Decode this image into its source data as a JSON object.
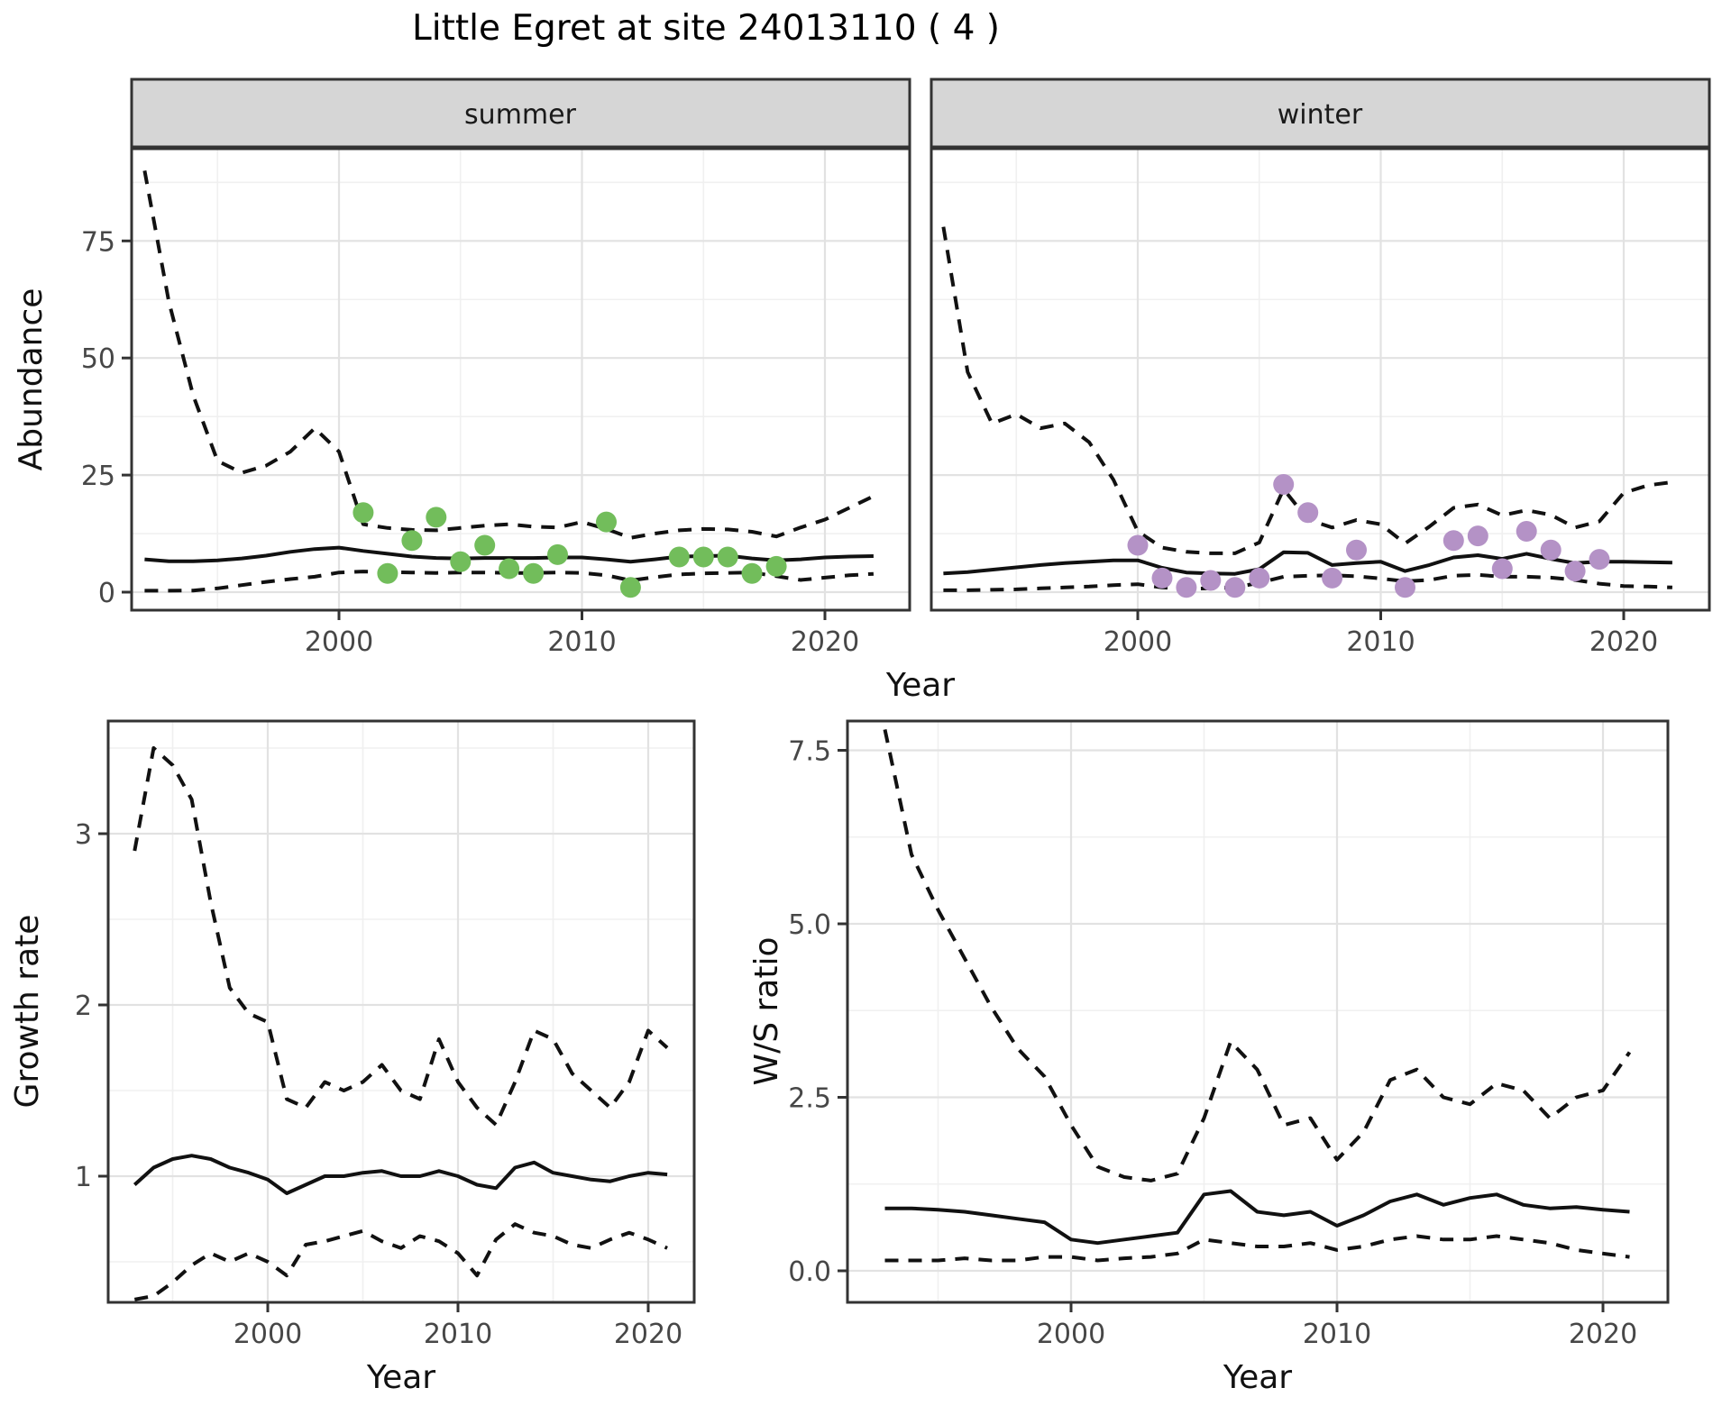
{
  "figure": {
    "title": "Little Egret at site 24013110 ( 4 )",
    "top_x_axis_title": "Year"
  },
  "colors": {
    "line": "#111111",
    "summer_points": "#72bd5b",
    "winter_points": "#b492c6",
    "strip_background": "#d6d6d6",
    "panel_border": "#333333",
    "grid_major": "#e2e2e2",
    "grid_minor": "#f0f0f0",
    "tick_text": "#474747"
  },
  "chart_data": [
    {
      "type": "line",
      "facet_label": "summer",
      "xlabel": "Year",
      "ylabel": "Abundance",
      "xlim": [
        1991.5,
        2023.5
      ],
      "ylim": [
        -4,
        98.5
      ],
      "grid": true,
      "legend": "none",
      "x_ticks": {
        "values": [
          2000,
          2010,
          2020
        ],
        "labels": [
          "2000",
          "2010",
          "2020"
        ]
      },
      "y_ticks": {
        "values": [
          0,
          25,
          50,
          75
        ],
        "labels": [
          "0",
          "25",
          "50",
          "75"
        ]
      },
      "series": [
        {
          "name": "upper_95ci",
          "style": "dashed",
          "x": [
            1992,
            1993,
            1994,
            1995,
            1996,
            1997,
            1998,
            1999,
            2000,
            2001,
            2002,
            2003,
            2004,
            2005,
            2006,
            2007,
            2008,
            2009,
            2010,
            2011,
            2012,
            2013,
            2014,
            2015,
            2016,
            2017,
            2018,
            2019,
            2020,
            2021,
            2022
          ],
          "y": [
            90,
            62,
            42,
            28,
            25.5,
            27,
            30,
            35,
            30,
            14.5,
            13.7,
            13.3,
            13.2,
            13.7,
            14.2,
            14.5,
            14,
            13.8,
            15,
            13.5,
            11.6,
            12.5,
            13.2,
            13.5,
            13.4,
            12.9,
            11.9,
            13.8,
            15.5,
            18,
            20.5
          ]
        },
        {
          "name": "median",
          "style": "solid",
          "x": [
            1992,
            1993,
            1994,
            1995,
            1996,
            1997,
            1998,
            1999,
            2000,
            2001,
            2002,
            2003,
            2004,
            2005,
            2006,
            2007,
            2008,
            2009,
            2010,
            2011,
            2012,
            2013,
            2014,
            2015,
            2016,
            2017,
            2018,
            2019,
            2020,
            2021,
            2022
          ],
          "y": [
            7,
            6.6,
            6.6,
            6.8,
            7.2,
            7.8,
            8.6,
            9.2,
            9.5,
            8.8,
            8.2,
            7.6,
            7.3,
            7.2,
            7.3,
            7.3,
            7.3,
            7.4,
            7.4,
            7,
            6.5,
            7,
            7.6,
            7.7,
            7.8,
            7.2,
            6.8,
            7,
            7.4,
            7.6,
            7.7
          ]
        },
        {
          "name": "lower_95ci",
          "style": "dashed",
          "x": [
            1992,
            1993,
            1994,
            1995,
            1996,
            1997,
            1998,
            1999,
            2000,
            2001,
            2002,
            2003,
            2004,
            2005,
            2006,
            2007,
            2008,
            2009,
            2010,
            2011,
            2012,
            2013,
            2014,
            2015,
            2016,
            2017,
            2018,
            2019,
            2020,
            2021,
            2022
          ],
          "y": [
            0.3,
            0.3,
            0.35,
            0.8,
            1.5,
            2.2,
            2.8,
            3.3,
            4.2,
            4.4,
            4.3,
            4.2,
            4.1,
            4.2,
            4.2,
            4.1,
            4.1,
            4.2,
            4.1,
            3.6,
            2.5,
            3.2,
            3.8,
            4,
            4.1,
            4.2,
            3.4,
            2.6,
            3.1,
            3.6,
            3.9
          ]
        }
      ],
      "points": {
        "name": "observed_counts",
        "color": "#72bd5b",
        "x": [
          2001,
          2002,
          2003,
          2004,
          2005,
          2006,
          2007,
          2008,
          2009,
          2011,
          2012,
          2014,
          2015,
          2016,
          2017,
          2018
        ],
        "y": [
          17,
          4,
          11,
          16,
          6.5,
          10,
          5,
          4,
          8,
          15,
          1,
          7.5,
          7.5,
          7.5,
          4,
          5.5
        ]
      }
    },
    {
      "type": "line",
      "facet_label": "winter",
      "xlabel": "Year",
      "ylabel": "Abundance",
      "xlim": [
        1991.5,
        2023.5
      ],
      "ylim": [
        -4,
        98.5
      ],
      "grid": true,
      "legend": "none",
      "x_ticks": {
        "values": [
          2000,
          2010,
          2020
        ],
        "labels": [
          "2000",
          "2010",
          "2020"
        ]
      },
      "y_ticks": {
        "values": [
          0,
          25,
          50,
          75
        ],
        "labels": [
          "0",
          "25",
          "50",
          "75"
        ]
      },
      "series": [
        {
          "name": "upper_95ci",
          "style": "dashed",
          "x": [
            1992,
            1993,
            1994,
            1995,
            1996,
            1997,
            1998,
            1999,
            2000,
            2001,
            2002,
            2003,
            2004,
            2005,
            2006,
            2007,
            2008,
            2009,
            2010,
            2011,
            2012,
            2013,
            2014,
            2015,
            2016,
            2017,
            2018,
            2019,
            2020,
            2021,
            2022
          ],
          "y": [
            78,
            47,
            36,
            38,
            35,
            36,
            32,
            24,
            13,
            9.5,
            8.6,
            8.3,
            8.3,
            10.6,
            22,
            15.5,
            13.8,
            15.4,
            14.5,
            10.4,
            14,
            18,
            18.7,
            16.4,
            17.5,
            16.5,
            13.8,
            15.1,
            21.2,
            22.8,
            23.5
          ]
        },
        {
          "name": "median",
          "style": "solid",
          "x": [
            1992,
            1993,
            1994,
            1995,
            1996,
            1997,
            1998,
            1999,
            2000,
            2001,
            2002,
            2003,
            2004,
            2005,
            2006,
            2007,
            2008,
            2009,
            2010,
            2011,
            2012,
            2013,
            2014,
            2015,
            2016,
            2017,
            2018,
            2019,
            2020,
            2021,
            2022
          ],
          "y": [
            4,
            4.3,
            4.8,
            5.3,
            5.8,
            6.2,
            6.5,
            6.8,
            6.8,
            5.2,
            4.2,
            4,
            3.9,
            4.9,
            8.5,
            8.4,
            5.8,
            6.2,
            6.5,
            4.5,
            5.8,
            7.4,
            7.9,
            7.1,
            8.2,
            7.1,
            6.2,
            6.5,
            6.5,
            6.4,
            6.3
          ]
        },
        {
          "name": "lower_95ci",
          "style": "dashed",
          "x": [
            1992,
            1993,
            1994,
            1995,
            1996,
            1997,
            1998,
            1999,
            2000,
            2001,
            2002,
            2003,
            2004,
            2005,
            2006,
            2007,
            2008,
            2009,
            2010,
            2011,
            2012,
            2013,
            2014,
            2015,
            2016,
            2017,
            2018,
            2019,
            2020,
            2021,
            2022
          ],
          "y": [
            0.4,
            0.4,
            0.5,
            0.6,
            0.8,
            1,
            1.2,
            1.5,
            1.7,
            1,
            0.7,
            0.8,
            1,
            2,
            3.3,
            3.5,
            3.6,
            3.4,
            2.9,
            2.3,
            2.6,
            3.5,
            3.7,
            3.3,
            3.3,
            3.1,
            2.6,
            1.8,
            1.3,
            1.2,
            1
          ]
        }
      ],
      "points": {
        "name": "observed_counts",
        "color": "#b492c6",
        "x": [
          2000,
          2001,
          2002,
          2003,
          2004,
          2005,
          2006,
          2007,
          2008,
          2009,
          2011,
          2013,
          2014,
          2015,
          2016,
          2017,
          2018,
          2019
        ],
        "y": [
          10,
          3,
          1,
          2.5,
          1,
          3,
          23,
          17,
          3,
          9,
          1,
          11,
          12,
          5,
          13,
          9,
          4.5,
          7
        ]
      }
    },
    {
      "type": "line",
      "facet_label": "",
      "xlabel": "Year",
      "ylabel": "Growth rate",
      "xlim": [
        1991.6,
        2022.4
      ],
      "ylim": [
        0.26,
        3.66
      ],
      "grid": true,
      "legend": "none",
      "x_ticks": {
        "values": [
          2000,
          2010,
          2020
        ],
        "labels": [
          "2000",
          "2010",
          "2020"
        ]
      },
      "y_ticks": {
        "values": [
          1,
          2,
          3
        ],
        "labels": [
          "1",
          "2",
          "3"
        ]
      },
      "series": [
        {
          "name": "upper_95ci",
          "style": "dashed",
          "x": [
            1993,
            1994,
            1995,
            1996,
            1997,
            1998,
            1999,
            2000,
            2001,
            2002,
            2003,
            2004,
            2005,
            2006,
            2007,
            2008,
            2009,
            2010,
            2011,
            2012,
            2013,
            2014,
            2015,
            2016,
            2017,
            2018,
            2019,
            2020,
            2021
          ],
          "y": [
            2.9,
            3.5,
            3.4,
            3.2,
            2.6,
            2.1,
            1.95,
            1.9,
            1.45,
            1.4,
            1.55,
            1.5,
            1.55,
            1.65,
            1.5,
            1.45,
            1.8,
            1.55,
            1.4,
            1.3,
            1.55,
            1.85,
            1.8,
            1.6,
            1.5,
            1.4,
            1.55,
            1.85,
            1.75
          ]
        },
        {
          "name": "median",
          "style": "solid",
          "x": [
            1993,
            1994,
            1995,
            1996,
            1997,
            1998,
            1999,
            2000,
            2001,
            2002,
            2003,
            2004,
            2005,
            2006,
            2007,
            2008,
            2009,
            2010,
            2011,
            2012,
            2013,
            2014,
            2015,
            2016,
            2017,
            2018,
            2019,
            2020,
            2021
          ],
          "y": [
            0.95,
            1.05,
            1.1,
            1.12,
            1.1,
            1.05,
            1.02,
            0.98,
            0.9,
            0.95,
            1,
            1,
            1.02,
            1.03,
            1,
            1,
            1.03,
            1,
            0.95,
            0.93,
            1.05,
            1.08,
            1.02,
            1,
            0.98,
            0.97,
            1,
            1.02,
            1.01
          ]
        },
        {
          "name": "lower_95ci",
          "style": "dashed",
          "x": [
            1993,
            1994,
            1995,
            1996,
            1997,
            1998,
            1999,
            2000,
            2001,
            2002,
            2003,
            2004,
            2005,
            2006,
            2007,
            2008,
            2009,
            2010,
            2011,
            2012,
            2013,
            2014,
            2015,
            2016,
            2017,
            2018,
            2019,
            2020,
            2021
          ],
          "y": [
            0.28,
            0.3,
            0.38,
            0.48,
            0.55,
            0.5,
            0.55,
            0.5,
            0.42,
            0.6,
            0.62,
            0.65,
            0.68,
            0.62,
            0.58,
            0.65,
            0.62,
            0.55,
            0.42,
            0.63,
            0.72,
            0.67,
            0.65,
            0.6,
            0.58,
            0.63,
            0.67,
            0.63,
            0.58
          ]
        }
      ],
      "points": null
    },
    {
      "type": "line",
      "facet_label": "",
      "xlabel": "Year",
      "ylabel": "W/S ratio",
      "xlim": [
        1991.6,
        2022.4
      ],
      "ylim": [
        -0.45,
        7.9
      ],
      "grid": true,
      "legend": "none",
      "x_ticks": {
        "values": [
          2000,
          2010,
          2020
        ],
        "labels": [
          "2000",
          "2010",
          "2020"
        ]
      },
      "y_ticks": {
        "values": [
          0,
          2.5,
          5,
          7.5
        ],
        "labels": [
          "0.0",
          "2.5",
          "5.0",
          "7.5"
        ]
      },
      "series": [
        {
          "name": "upper_95ci",
          "style": "dashed",
          "x": [
            1993,
            1994,
            1995,
            1996,
            1997,
            1998,
            1999,
            2000,
            2001,
            2002,
            2003,
            2004,
            2005,
            2006,
            2007,
            2008,
            2009,
            2010,
            2011,
            2012,
            2013,
            2014,
            2015,
            2016,
            2017,
            2018,
            2019,
            2020,
            2021
          ],
          "y": [
            7.8,
            6,
            5.2,
            4.5,
            3.8,
            3.2,
            2.8,
            2.1,
            1.5,
            1.35,
            1.3,
            1.4,
            2.2,
            3.3,
            2.9,
            2.1,
            2.2,
            1.6,
            2,
            2.75,
            2.9,
            2.5,
            2.4,
            2.7,
            2.6,
            2.2,
            2.5,
            2.6,
            3.15
          ]
        },
        {
          "name": "median",
          "style": "solid",
          "x": [
            1993,
            1994,
            1995,
            1996,
            1997,
            1998,
            1999,
            2000,
            2001,
            2002,
            2003,
            2004,
            2005,
            2006,
            2007,
            2008,
            2009,
            2010,
            2011,
            2012,
            2013,
            2014,
            2015,
            2016,
            2017,
            2018,
            2019,
            2020,
            2021
          ],
          "y": [
            0.9,
            0.9,
            0.88,
            0.85,
            0.8,
            0.75,
            0.7,
            0.45,
            0.4,
            0.45,
            0.5,
            0.55,
            1.1,
            1.15,
            0.85,
            0.8,
            0.85,
            0.65,
            0.8,
            1,
            1.1,
            0.95,
            1.05,
            1.1,
            0.95,
            0.9,
            0.92,
            0.88,
            0.85
          ]
        },
        {
          "name": "lower_95ci",
          "style": "dashed",
          "x": [
            1993,
            1994,
            1995,
            1996,
            1997,
            1998,
            1999,
            2000,
            2001,
            2002,
            2003,
            2004,
            2005,
            2006,
            2007,
            2008,
            2009,
            2010,
            2011,
            2012,
            2013,
            2014,
            2015,
            2016,
            2017,
            2018,
            2019,
            2020,
            2021
          ],
          "y": [
            0.15,
            0.15,
            0.15,
            0.18,
            0.15,
            0.15,
            0.2,
            0.2,
            0.15,
            0.18,
            0.2,
            0.25,
            0.45,
            0.4,
            0.35,
            0.35,
            0.4,
            0.3,
            0.35,
            0.45,
            0.5,
            0.45,
            0.45,
            0.5,
            0.45,
            0.4,
            0.3,
            0.25,
            0.2
          ]
        }
      ],
      "points": null
    }
  ]
}
